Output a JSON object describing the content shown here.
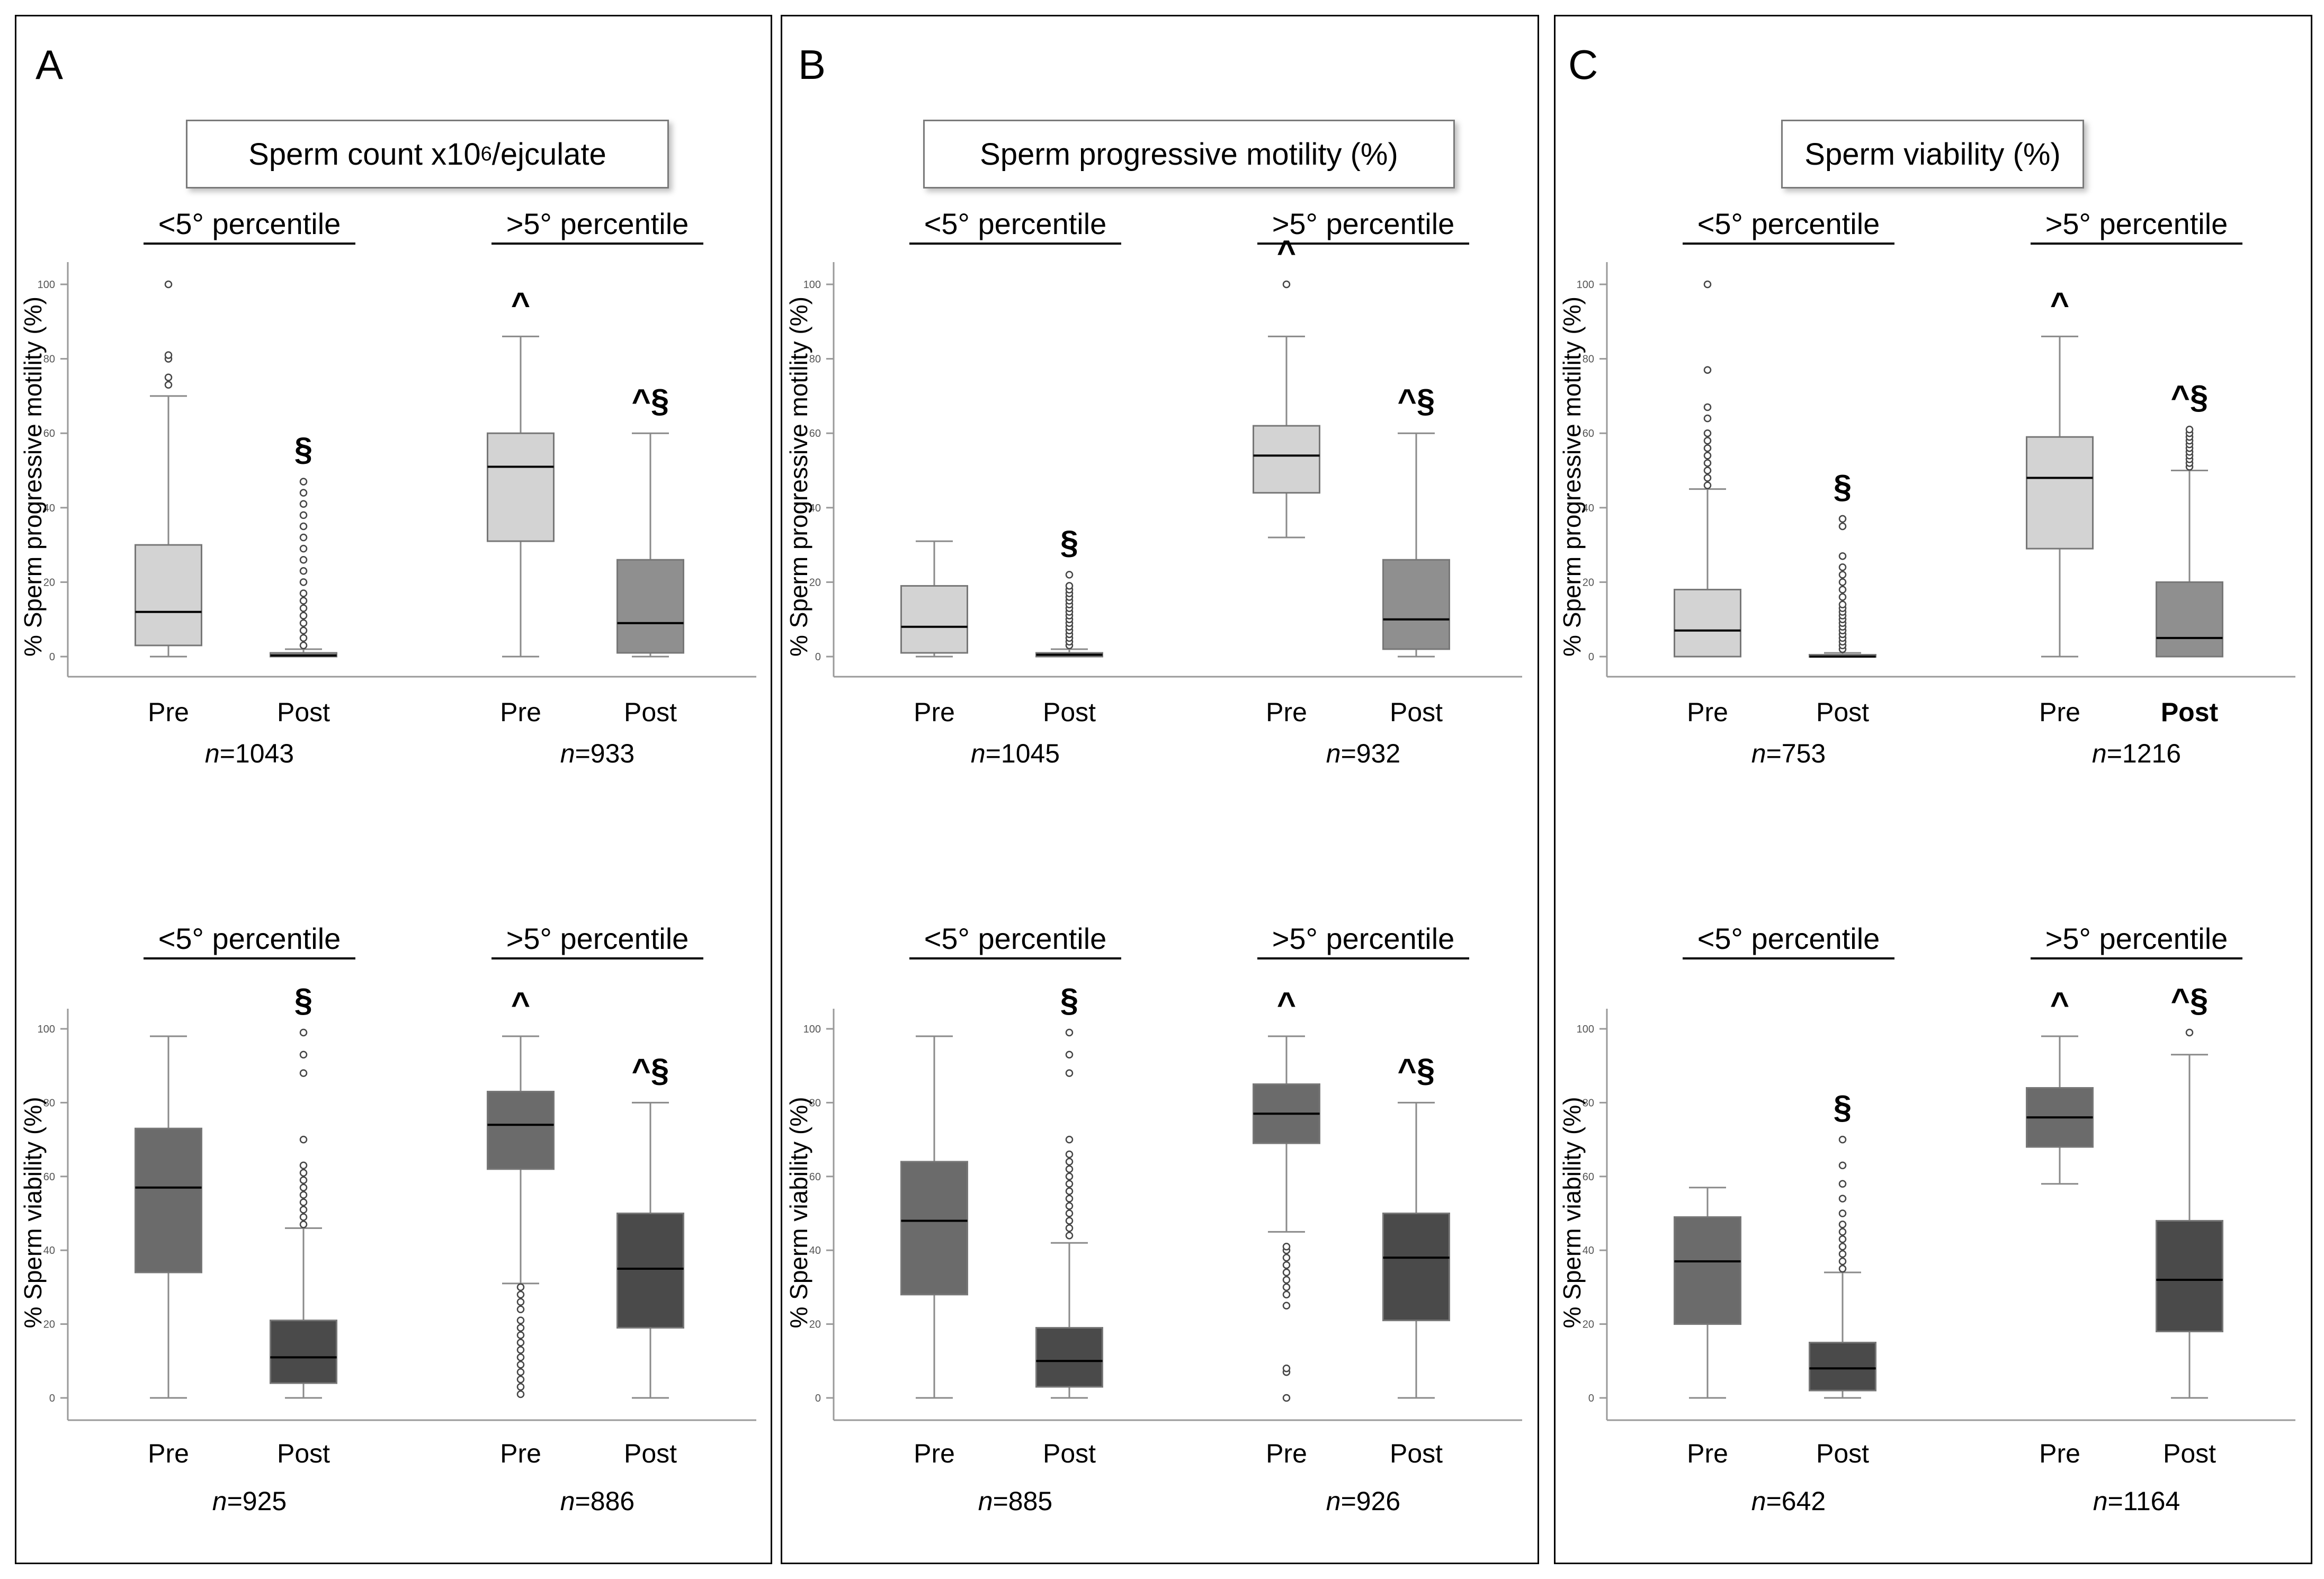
{
  "colors": {
    "light_box": "#d3d3d3",
    "mid_box": "#8f8f8f",
    "dark_box_pre": "#6b6b6b",
    "dark_box_post": "#4a4a4a",
    "line": "#a0a0a0",
    "frame": "#000000"
  },
  "panels": [
    {
      "letter": "A",
      "title": {
        "main": "Sperm count x10",
        "sup": "6",
        "rest": "/ejculate"
      }
    },
    {
      "letter": "B",
      "title": {
        "main": "Sperm progressive motility (%)",
        "sup": "",
        "rest": ""
      }
    },
    {
      "letter": "C",
      "title": {
        "main": "Sperm viability (%)",
        "sup": "",
        "rest": ""
      }
    }
  ],
  "chart_data": [
    {
      "panel": "A",
      "row": "top",
      "type": "box",
      "ylabel": "% Sperm progressive motility (%)",
      "ylim": [
        0,
        100
      ],
      "yticks": [
        0,
        20,
        40,
        60,
        80,
        100
      ],
      "groups": [
        {
          "label": "<5° percentile",
          "boxes": [
            {
              "x": "Pre",
              "n": "1043",
              "shade": "light",
              "annot": "",
              "min": 0,
              "q1": 3,
              "median": 12,
              "q3": 30,
              "max": 70,
              "outliers": [
                73,
                75,
                80,
                81,
                100
              ]
            },
            {
              "x": "Post",
              "n": "",
              "shade": "mid",
              "annot": "§",
              "min": 0,
              "q1": 0,
              "median": 0.3,
              "q3": 1,
              "max": 2,
              "outliers": [
                3,
                5,
                7,
                9,
                11,
                13,
                15,
                17,
                20,
                23,
                26,
                29,
                32,
                35,
                38,
                41,
                44,
                47
              ]
            }
          ],
          "n": "n=1043"
        },
        {
          "label": ">5° percentile",
          "boxes": [
            {
              "x": "Pre",
              "n": "933",
              "shade": "light",
              "annot": "^",
              "min": 0,
              "q1": 31,
              "median": 51,
              "q3": 60,
              "max": 86,
              "outliers": []
            },
            {
              "x": "Post",
              "n": "",
              "shade": "mid",
              "annot": "^§",
              "min": 0,
              "q1": 1,
              "median": 9,
              "q3": 26,
              "max": 60,
              "outliers": []
            }
          ],
          "n": "n=933"
        }
      ]
    },
    {
      "panel": "A",
      "row": "bottom",
      "type": "box",
      "ylabel": "% Sperm viability (%)",
      "ylim": [
        0,
        100
      ],
      "yticks": [
        0,
        20,
        40,
        60,
        80,
        100
      ],
      "groups": [
        {
          "label": "<5° percentile",
          "boxes": [
            {
              "x": "Pre",
              "shade": "darkpre",
              "annot": "",
              "min": 0,
              "q1": 34,
              "median": 57,
              "q3": 73,
              "max": 98,
              "outliers": []
            },
            {
              "x": "Post",
              "shade": "darkpost",
              "annot": "§",
              "min": 0,
              "q1": 4,
              "median": 11,
              "q3": 21,
              "max": 46,
              "outliers": [
                47,
                49,
                51,
                53,
                55,
                57,
                59,
                61,
                63,
                70,
                88,
                93,
                99
              ]
            }
          ],
          "n": "n=925"
        },
        {
          "label": ">5° percentile",
          "boxes": [
            {
              "x": "Pre",
              "shade": "darkpre",
              "annot": "^",
              "min": 31,
              "q1": 62,
              "median": 74,
              "q3": 83,
              "max": 98,
              "outliers": [
                1,
                3,
                5,
                7,
                9,
                11,
                13,
                15,
                17,
                19,
                21,
                24,
                26,
                28,
                30
              ]
            },
            {
              "x": "Post",
              "shade": "darkpost",
              "annot": "^§",
              "min": 0,
              "q1": 19,
              "median": 35,
              "q3": 50,
              "max": 80,
              "outliers": []
            }
          ],
          "n": "n=886"
        }
      ]
    },
    {
      "panel": "B",
      "row": "top",
      "type": "box",
      "ylabel": "% Sperm progressive motility (%)",
      "ylim": [
        0,
        100
      ],
      "yticks": [
        0,
        20,
        40,
        60,
        80,
        100
      ],
      "groups": [
        {
          "label": "<5° percentile",
          "boxes": [
            {
              "x": "Pre",
              "shade": "light",
              "annot": "",
              "min": 0,
              "q1": 1,
              "median": 8,
              "q3": 19,
              "max": 31,
              "outliers": []
            },
            {
              "x": "Post",
              "shade": "mid",
              "annot": "§",
              "min": 0,
              "q1": 0,
              "median": 0.5,
              "q3": 1,
              "max": 2,
              "outliers": [
                3,
                4,
                5,
                6,
                7,
                8,
                9,
                10,
                11,
                12,
                13,
                14,
                15,
                16,
                17,
                18,
                19,
                22
              ]
            }
          ],
          "n": "n=1045"
        },
        {
          "label": ">5° percentile",
          "boxes": [
            {
              "x": "Pre",
              "shade": "light",
              "annot": "^",
              "min": 32,
              "q1": 44,
              "median": 54,
              "q3": 62,
              "max": 86,
              "outliers": [
                100
              ]
            },
            {
              "x": "Post",
              "shade": "mid",
              "annot": "^§",
              "min": 0,
              "q1": 2,
              "median": 10,
              "q3": 26,
              "max": 60,
              "outliers": []
            }
          ],
          "n": "n=932"
        }
      ]
    },
    {
      "panel": "B",
      "row": "bottom",
      "type": "box",
      "ylabel": "% Sperm viability (%)",
      "ylim": [
        0,
        100
      ],
      "yticks": [
        0,
        20,
        40,
        60,
        80,
        100
      ],
      "groups": [
        {
          "label": "<5° percentile",
          "boxes": [
            {
              "x": "Pre",
              "shade": "darkpre",
              "annot": "",
              "min": 0,
              "q1": 28,
              "median": 48,
              "q3": 64,
              "max": 98,
              "outliers": []
            },
            {
              "x": "Post",
              "shade": "darkpost",
              "annot": "§",
              "min": 0,
              "q1": 3,
              "median": 10,
              "q3": 19,
              "max": 42,
              "outliers": [
                44,
                46,
                48,
                50,
                52,
                54,
                56,
                58,
                60,
                62,
                64,
                66,
                70,
                88,
                93,
                99
              ]
            }
          ],
          "n": "n=885"
        },
        {
          "label": ">5° percentile",
          "boxes": [
            {
              "x": "Pre",
              "shade": "darkpre",
              "annot": "^",
              "min": 45,
              "q1": 69,
              "median": 77,
              "q3": 85,
              "max": 98,
              "outliers": [
                0,
                7,
                8,
                25,
                28,
                30,
                32,
                34,
                36,
                38,
                40,
                41
              ]
            },
            {
              "x": "Post",
              "shade": "darkpost",
              "annot": "^§",
              "min": 0,
              "q1": 21,
              "median": 38,
              "q3": 50,
              "max": 80,
              "outliers": []
            }
          ],
          "n": "n=926"
        }
      ]
    },
    {
      "panel": "C",
      "row": "top",
      "type": "box",
      "ylabel": "% Sperm progressive motility (%)",
      "ylim": [
        0,
        100
      ],
      "yticks": [
        0,
        20,
        40,
        60,
        80,
        100
      ],
      "groups": [
        {
          "label": "<5° percentile",
          "boxes": [
            {
              "x": "Pre",
              "shade": "light",
              "annot": "",
              "min": 0,
              "q1": 0,
              "median": 7,
              "q3": 18,
              "max": 45,
              "outliers": [
                46,
                48,
                50,
                52,
                54,
                56,
                58,
                60,
                64,
                67,
                77,
                100
              ]
            },
            {
              "x": "Post",
              "shade": "mid",
              "annot": "§",
              "min": 0,
              "q1": 0,
              "median": 0,
              "q3": 0.5,
              "max": 1,
              "outliers": [
                2,
                3,
                4,
                5,
                6,
                7,
                8,
                9,
                10,
                11,
                12,
                13,
                14,
                16,
                18,
                20,
                22,
                24,
                27,
                35,
                37
              ]
            }
          ],
          "n": "n=753"
        },
        {
          "label": ">5° percentile",
          "boxes": [
            {
              "x": "Pre",
              "shade": "light",
              "annot": "^",
              "min": 0,
              "q1": 29,
              "median": 48,
              "q3": 59,
              "max": 86,
              "outliers": []
            },
            {
              "x": "Post",
              "shade": "mid",
              "annot": "^§",
              "min": 0,
              "q1": 0,
              "median": 5,
              "q3": 20,
              "max": 50,
              "outliers": [
                51,
                52,
                53,
                54,
                55,
                56,
                57,
                58,
                59,
                60,
                61
              ]
            }
          ],
          "n": "n=1216"
        }
      ]
    },
    {
      "panel": "C",
      "row": "bottom",
      "type": "box",
      "ylabel": "% Sperm viability (%)",
      "ylim": [
        0,
        100
      ],
      "yticks": [
        0,
        20,
        40,
        60,
        80,
        100
      ],
      "groups": [
        {
          "label": "<5° percentile",
          "boxes": [
            {
              "x": "Pre",
              "shade": "darkpre",
              "annot": "",
              "min": 0,
              "q1": 20,
              "median": 37,
              "q3": 49,
              "max": 57,
              "outliers": []
            },
            {
              "x": "Post",
              "shade": "darkpost",
              "annot": "§",
              "min": 0,
              "q1": 2,
              "median": 8,
              "q3": 15,
              "max": 34,
              "outliers": [
                35,
                37,
                39,
                41,
                43,
                45,
                47,
                50,
                54,
                58,
                63,
                70
              ]
            }
          ],
          "n": "n=642"
        },
        {
          "label": ">5° percentile",
          "boxes": [
            {
              "x": "Pre",
              "shade": "darkpre",
              "annot": "^",
              "min": 58,
              "q1": 68,
              "median": 76,
              "q3": 84,
              "max": 98,
              "outliers": []
            },
            {
              "x": "Post",
              "shade": "darkpost",
              "annot": "^§",
              "min": 0,
              "q1": 18,
              "median": 32,
              "q3": 48,
              "max": 93,
              "outliers": [
                99
              ]
            }
          ],
          "n": "n=1164"
        }
      ]
    }
  ]
}
